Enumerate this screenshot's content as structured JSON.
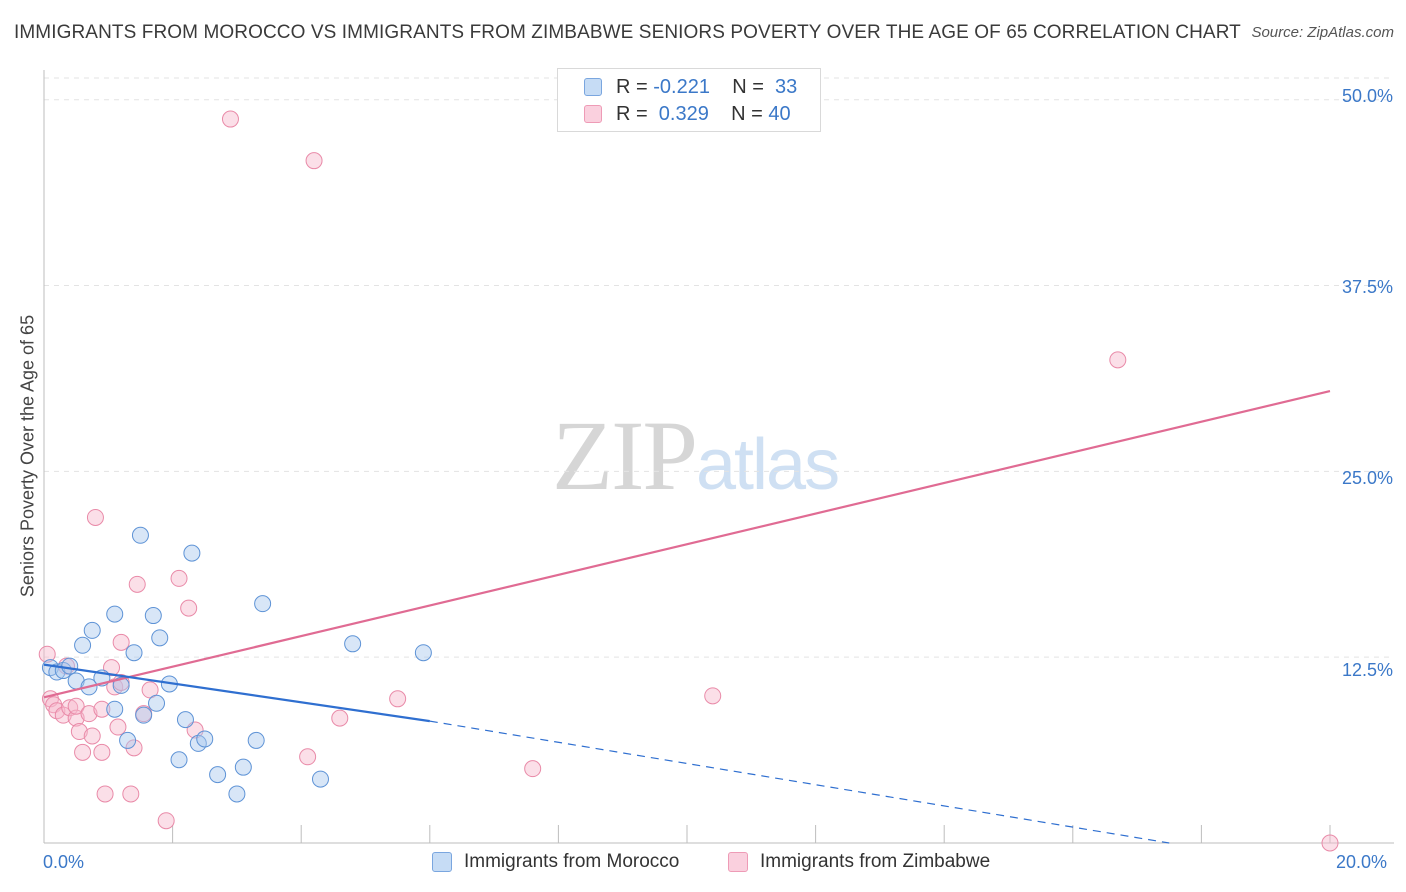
{
  "title": "IMMIGRANTS FROM MOROCCO VS IMMIGRANTS FROM ZIMBABWE SENIORS POVERTY OVER THE AGE OF 65 CORRELATION CHART",
  "source": "Source: ZipAtlas.com",
  "watermark": {
    "zip": "ZIP",
    "atlas": "atlas"
  },
  "legend": {
    "rows": [
      {
        "r_label": "R =",
        "r_value": "-0.221",
        "n_label": "N =",
        "n_value": "33",
        "color": "#a9c8ee"
      },
      {
        "r_label": "R =",
        "r_value": " 0.329",
        "n_label": "N =",
        "n_value": "40",
        "color": "#f6b7cb"
      }
    ]
  },
  "bottom_legend": {
    "morocco": "Immigrants from Morocco",
    "zimbabwe": "Immigrants from Zimbabwe"
  },
  "colors": {
    "morocco_fill": "#a9c8ee",
    "morocco_stroke": "#5e93d6",
    "morocco_line": "#2f6fd0",
    "zimbabwe_fill": "#f6b7cb",
    "zimbabwe_stroke": "#e98aa8",
    "zimbabwe_line": "#e06b93",
    "grid": "#e3e3e3",
    "tick_text": "#3b78c8"
  },
  "chart_data": {
    "type": "scatter",
    "title": "IMMIGRANTS FROM MOROCCO VS IMMIGRANTS FROM ZIMBABWE SENIORS POVERTY OVER THE AGE OF 65 CORRELATION CHART",
    "xlabel": "",
    "ylabel": "Seniors Poverty Over the Age of 65",
    "xlim": [
      0,
      20
    ],
    "ylim": [
      0,
      52
    ],
    "x_tick_labels": [
      "0.0%",
      "20.0%"
    ],
    "y_ticks": [
      12.5,
      25.0,
      37.5,
      50.0
    ],
    "y_tick_labels": [
      "12.5%",
      "25.0%",
      "37.5%",
      "50.0%"
    ],
    "grid": true,
    "legend_position": "top-center",
    "series": [
      {
        "name": "Immigrants from Morocco",
        "r": -0.221,
        "n": 33,
        "points": [
          [
            0.1,
            11.8
          ],
          [
            0.2,
            11.5
          ],
          [
            0.3,
            11.6
          ],
          [
            0.4,
            11.9
          ],
          [
            0.5,
            10.9
          ],
          [
            0.6,
            13.3
          ],
          [
            0.7,
            10.5
          ],
          [
            0.75,
            14.3
          ],
          [
            0.9,
            11.1
          ],
          [
            1.1,
            9.0
          ],
          [
            1.1,
            15.4
          ],
          [
            1.2,
            10.6
          ],
          [
            1.3,
            6.9
          ],
          [
            1.4,
            12.8
          ],
          [
            1.5,
            20.7
          ],
          [
            1.55,
            8.6
          ],
          [
            1.7,
            15.3
          ],
          [
            1.75,
            9.4
          ],
          [
            1.8,
            13.8
          ],
          [
            1.95,
            10.7
          ],
          [
            2.1,
            5.6
          ],
          [
            2.2,
            8.3
          ],
          [
            2.3,
            19.5
          ],
          [
            2.4,
            6.7
          ],
          [
            2.5,
            7.0
          ],
          [
            2.7,
            4.6
          ],
          [
            3.0,
            3.3
          ],
          [
            3.1,
            5.1
          ],
          [
            3.3,
            6.9
          ],
          [
            3.4,
            16.1
          ],
          [
            4.3,
            4.3
          ],
          [
            4.8,
            13.4
          ],
          [
            5.9,
            12.8
          ]
        ],
        "trend": {
          "x0": 0,
          "y0": 12.0,
          "x1": 6.0,
          "y1": 8.2,
          "dashed_to_x": 17.5,
          "dashed_to_y": 0.0
        }
      },
      {
        "name": "Immigrants from Zimbabwe",
        "r": 0.329,
        "n": 40,
        "points": [
          [
            0.05,
            12.7
          ],
          [
            0.1,
            9.7
          ],
          [
            0.15,
            9.3
          ],
          [
            0.2,
            8.9
          ],
          [
            0.3,
            8.6
          ],
          [
            0.35,
            11.9
          ],
          [
            0.4,
            9.1
          ],
          [
            0.5,
            8.4
          ],
          [
            0.5,
            9.2
          ],
          [
            0.55,
            7.5
          ],
          [
            0.6,
            6.1
          ],
          [
            0.7,
            8.7
          ],
          [
            0.75,
            7.2
          ],
          [
            0.8,
            21.9
          ],
          [
            0.9,
            9.0
          ],
          [
            0.9,
            6.1
          ],
          [
            0.95,
            3.3
          ],
          [
            1.05,
            11.8
          ],
          [
            1.1,
            10.5
          ],
          [
            1.15,
            7.8
          ],
          [
            1.2,
            13.5
          ],
          [
            1.2,
            10.8
          ],
          [
            1.35,
            3.3
          ],
          [
            1.4,
            6.4
          ],
          [
            1.45,
            17.4
          ],
          [
            1.55,
            8.7
          ],
          [
            1.65,
            10.3
          ],
          [
            1.9,
            1.5
          ],
          [
            2.1,
            17.8
          ],
          [
            2.25,
            15.8
          ],
          [
            2.35,
            7.6
          ],
          [
            2.9,
            48.7
          ],
          [
            4.1,
            5.8
          ],
          [
            4.2,
            45.9
          ],
          [
            4.6,
            8.4
          ],
          [
            5.5,
            9.7
          ],
          [
            7.6,
            5.0
          ],
          [
            10.4,
            9.9
          ],
          [
            16.7,
            32.5
          ],
          [
            20.0,
            0.0
          ]
        ],
        "trend": {
          "x0": 0,
          "y0": 9.8,
          "x1": 20.0,
          "y1": 30.4
        }
      }
    ]
  }
}
